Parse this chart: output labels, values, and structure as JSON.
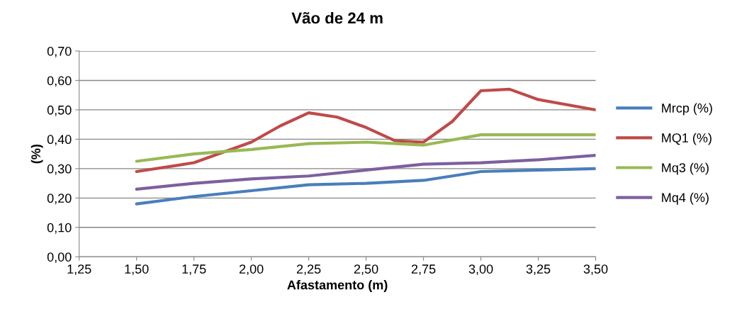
{
  "chart_data": {
    "type": "line",
    "title": "Vão de 24 m",
    "xlabel": "Afastamento (m)",
    "ylabel": "(%)",
    "x": [
      1.5,
      1.75,
      2.0,
      2.25,
      2.5,
      2.75,
      3.0,
      3.25,
      3.5
    ],
    "series": [
      {
        "name": "Mrcp (%)",
        "color": "#4a7ebb",
        "values": [
          0.18,
          0.205,
          0.225,
          0.245,
          0.25,
          0.26,
          0.29,
          0.295,
          0.3
        ]
      },
      {
        "name": "MQ1 (%)",
        "color": "#be4b48",
        "x": [
          1.5,
          1.75,
          2.0,
          2.125,
          2.25,
          2.375,
          2.5,
          2.625,
          2.75,
          2.875,
          3.0,
          3.125,
          3.25,
          3.5
        ],
        "values": [
          0.29,
          0.32,
          0.39,
          0.445,
          0.49,
          0.475,
          0.44,
          0.395,
          0.39,
          0.46,
          0.565,
          0.57,
          0.535,
          0.5
        ]
      },
      {
        "name": "Mq3 (%)",
        "color": "#98b954",
        "values": [
          0.325,
          0.35,
          0.365,
          0.385,
          0.39,
          0.38,
          0.415,
          0.415,
          0.415
        ]
      },
      {
        "name": "Mq4 (%)",
        "color": "#7d60a0",
        "values": [
          0.23,
          0.25,
          0.265,
          0.275,
          0.295,
          0.315,
          0.32,
          0.33,
          0.345
        ]
      }
    ],
    "xlim": [
      1.25,
      3.5
    ],
    "xticks": [
      {
        "value": 1.25,
        "label": "1,25"
      },
      {
        "value": 1.5,
        "label": "1,50"
      },
      {
        "value": 1.75,
        "label": "1,75"
      },
      {
        "value": 2.0,
        "label": "2,00"
      },
      {
        "value": 2.25,
        "label": "2,25"
      },
      {
        "value": 2.5,
        "label": "2,50"
      },
      {
        "value": 2.75,
        "label": "2,75"
      },
      {
        "value": 3.0,
        "label": "3,00"
      },
      {
        "value": 3.25,
        "label": "3,25"
      },
      {
        "value": 3.5,
        "label": "3,50"
      }
    ],
    "ylim": [
      0,
      0.7
    ],
    "yticks": [
      {
        "value": 0,
        "label": "0,00"
      },
      {
        "value": 0.1,
        "label": "0,10"
      },
      {
        "value": 0.2,
        "label": "0,20"
      },
      {
        "value": 0.3,
        "label": "0,30"
      },
      {
        "value": 0.4,
        "label": "0,40"
      },
      {
        "value": 0.5,
        "label": "0,50"
      },
      {
        "value": 0.6,
        "label": "0,60"
      },
      {
        "value": 0.7,
        "label": "0,70"
      }
    ],
    "grid": "y",
    "legend": "right",
    "marker": "none",
    "line_style": "solid"
  }
}
